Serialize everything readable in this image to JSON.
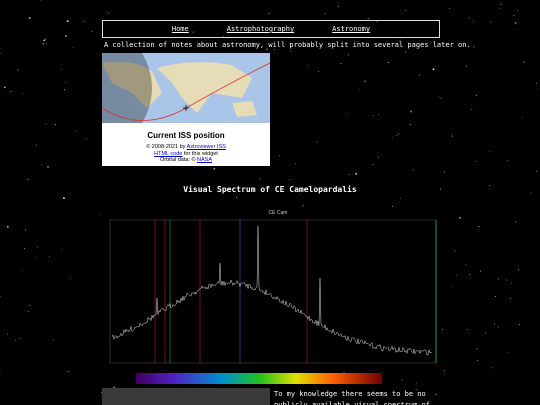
{
  "nav": {
    "links": [
      "Home",
      "Astrophotography",
      "Astronomy"
    ]
  },
  "intro": "A collection of notes about astronomy, will probably split into several pages later on.",
  "iss_widget": {
    "title": "Current ISS position",
    "copyright_prefix": "© 2008-2021 by",
    "copyright_link": "Astroviewer ISS",
    "code_link": "HTML code",
    "code_suffix": "for this widget",
    "orbital_prefix": "Orbital data: ©",
    "orbital_link": "NASA"
  },
  "section": {
    "title": "Visual Spectrum of CE Camelopardalis",
    "spectrum_title": "CE Cam",
    "paragraph": "To my knowledge there seems to be no publicly available visual spectrum of the star"
  }
}
